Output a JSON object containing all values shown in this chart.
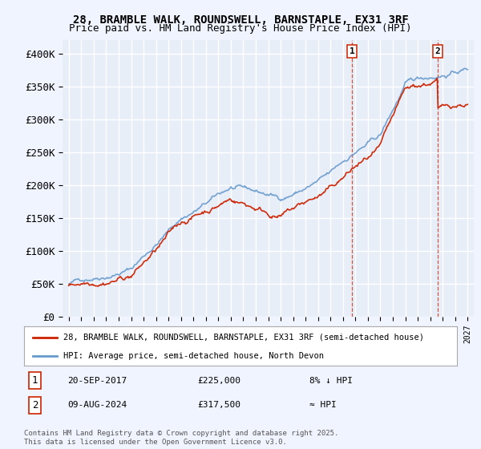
{
  "title_line1": "28, BRAMBLE WALK, ROUNDSWELL, BARNSTAPLE, EX31 3RF",
  "title_line2": "Price paid vs. HM Land Registry's House Price Index (HPI)",
  "ylim": [
    0,
    420000
  ],
  "yticks": [
    0,
    50000,
    100000,
    150000,
    200000,
    250000,
    300000,
    350000,
    400000
  ],
  "ytick_labels": [
    "£0",
    "£50K",
    "£100K",
    "£150K",
    "£200K",
    "£250K",
    "£300K",
    "£350K",
    "£400K"
  ],
  "background_color": "#f0f4ff",
  "plot_bg_color": "#e8eef8",
  "grid_color": "#ffffff",
  "hpi_color": "#6699cc",
  "price_color": "#cc2200",
  "marker1_x": 2017.72,
  "marker1_price": 225000,
  "marker2_x": 2024.6,
  "marker2_price": 317500,
  "legend_property": "28, BRAMBLE WALK, ROUNDSWELL, BARNSTAPLE, EX31 3RF (semi-detached house)",
  "legend_hpi": "HPI: Average price, semi-detached house, North Devon",
  "footnote": "Contains HM Land Registry data © Crown copyright and database right 2025.\nThis data is licensed under the Open Government Licence v3.0.",
  "sale1_date": "20-SEP-2017",
  "sale1_price": "£225,000",
  "sale1_hpi": "8% ↓ HPI",
  "sale2_date": "09-AUG-2024",
  "sale2_price": "£317,500",
  "sale2_hpi": "≈ HPI"
}
